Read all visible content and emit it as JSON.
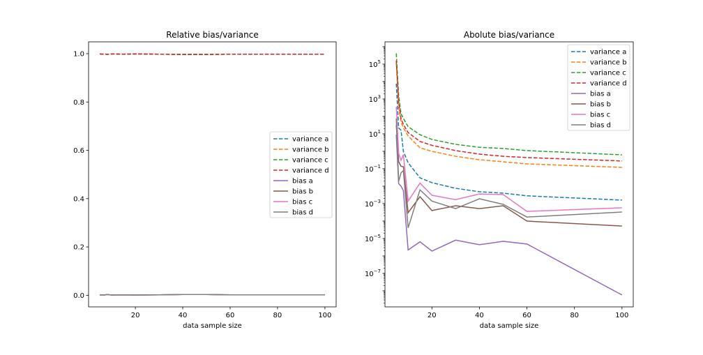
{
  "chart_data": [
    {
      "type": "line",
      "title": "Relative bias/variance",
      "xlabel": "data sample size",
      "ylabel": "",
      "xlim": [
        0.25,
        104.75
      ],
      "ylim": [
        -0.048,
        1.049
      ],
      "yscale": "linear",
      "xticks": [
        20,
        40,
        60,
        80,
        100
      ],
      "yticks": [
        0.0,
        0.2,
        0.4,
        0.6,
        0.8,
        1.0
      ],
      "ytick_labels": [
        "0.0",
        "0.2",
        "0.4",
        "0.6",
        "0.8",
        "1.0"
      ],
      "grid": false,
      "legend_position": "center-right",
      "x": [
        5,
        6,
        7,
        8,
        10,
        15,
        20,
        30,
        40,
        50,
        60,
        100
      ],
      "series": [
        {
          "name": "variance a",
          "style": "dashed",
          "color": "#1f77b4",
          "values": [
            0.999,
            0.998,
            0.999,
            0.997,
            0.999,
            0.998,
            0.999,
            0.998,
            0.997,
            0.997,
            0.998,
            0.998
          ]
        },
        {
          "name": "variance b",
          "style": "dashed",
          "color": "#ff7f0e",
          "values": [
            0.999,
            0.998,
            0.999,
            0.997,
            0.999,
            0.998,
            0.999,
            0.998,
            0.997,
            0.997,
            0.998,
            0.998
          ]
        },
        {
          "name": "variance c",
          "style": "dashed",
          "color": "#2ca02c",
          "values": [
            0.999,
            0.998,
            0.999,
            0.997,
            0.999,
            0.998,
            0.999,
            0.998,
            0.997,
            0.997,
            0.998,
            0.998
          ]
        },
        {
          "name": "variance d",
          "style": "dashed",
          "color": "#d62728",
          "values": [
            0.999,
            0.998,
            0.999,
            0.997,
            0.999,
            0.998,
            0.999,
            0.998,
            0.997,
            0.997,
            0.998,
            0.998
          ]
        },
        {
          "name": "bias a",
          "style": "solid",
          "color": "#9467bd",
          "values": [
            0.001,
            0.002,
            0.001,
            0.003,
            0.001,
            0.002,
            0.001,
            0.002,
            0.003,
            0.003,
            0.002,
            0.002
          ]
        },
        {
          "name": "bias b",
          "style": "solid",
          "color": "#8c564b",
          "values": [
            0.001,
            0.002,
            0.001,
            0.003,
            0.001,
            0.002,
            0.001,
            0.002,
            0.003,
            0.003,
            0.002,
            0.002
          ]
        },
        {
          "name": "bias c",
          "style": "solid",
          "color": "#e377c2",
          "values": [
            0.001,
            0.002,
            0.001,
            0.003,
            0.001,
            0.002,
            0.001,
            0.002,
            0.003,
            0.003,
            0.002,
            0.002
          ]
        },
        {
          "name": "bias d",
          "style": "solid",
          "color": "#7f7f7f",
          "values": [
            0.001,
            0.002,
            0.001,
            0.003,
            0.001,
            0.002,
            0.001,
            0.002,
            0.003,
            0.003,
            0.002,
            0.002
          ]
        }
      ]
    },
    {
      "type": "line",
      "title": "Abolute bias/variance",
      "xlabel": "data sample size",
      "ylabel": "",
      "xlim": [
        0.25,
        104.75
      ],
      "ylim": [
        1.2e-09,
        1900000.0
      ],
      "yscale": "log",
      "xticks": [
        20,
        40,
        60,
        80,
        100
      ],
      "yticks_exp": [
        5,
        3,
        1,
        -1,
        -3,
        -5,
        -7
      ],
      "grid": false,
      "legend_position": "upper-right",
      "x": [
        5,
        6,
        7,
        8,
        10,
        15,
        20,
        30,
        40,
        50,
        60,
        100
      ],
      "series": [
        {
          "name": "variance a",
          "style": "dashed",
          "color": "#1f77b4",
          "values": [
            7600,
            22,
            16,
            1.0,
            0.22,
            0.03,
            0.016,
            0.0076,
            0.0048,
            0.004,
            0.0028,
            0.0016
          ]
        },
        {
          "name": "variance b",
          "style": "dashed",
          "color": "#ff7f0e",
          "values": [
            120000,
            350,
            48,
            22,
            7.6,
            1.6,
            1.0,
            0.52,
            0.33,
            0.25,
            0.19,
            0.12
          ]
        },
        {
          "name": "variance c",
          "style": "dashed",
          "color": "#2ca02c",
          "values": [
            410000,
            1600,
            145,
            76,
            26,
            8.9,
            4.8,
            2.5,
            1.7,
            1.45,
            1.1,
            0.63
          ]
        },
        {
          "name": "variance d",
          "style": "dashed",
          "color": "#d62728",
          "values": [
            160000,
            650,
            76,
            35,
            12,
            3.7,
            2.2,
            1.1,
            0.69,
            0.52,
            0.44,
            0.28
          ]
        },
        {
          "name": "bias a",
          "style": "solid",
          "color": "#9467bd",
          "values": [
            8.9,
            0.014,
            0.01,
            0.0056,
            2.2e-06,
            6.5e-06,
            1.9e-06,
            8.1e-06,
            4.4e-06,
            6.9e-06,
            4.8e-06,
            5.8e-09
          ]
        },
        {
          "name": "bias b",
          "style": "solid",
          "color": "#8c564b",
          "values": [
            32,
            0.26,
            0.14,
            0.13,
            0.0003,
            0.0025,
            0.0004,
            0.00076,
            0.00052,
            0.00076,
            0.0001,
            5.2e-05
          ]
        },
        {
          "name": "bias c",
          "style": "solid",
          "color": "#e377c2",
          "values": [
            355,
            0.76,
            0.3,
            0.65,
            0.0014,
            0.015,
            0.003,
            0.0017,
            0.0036,
            0.0033,
            0.00036,
            0.00058
          ]
        },
        {
          "name": "bias d",
          "style": "solid",
          "color": "#7f7f7f",
          "values": [
            76,
            0.019,
            0.058,
            0.079,
            4.1e-05,
            0.0062,
            0.0014,
            0.00052,
            0.0019,
            0.00091,
            0.00017,
            0.00033
          ]
        }
      ]
    }
  ]
}
